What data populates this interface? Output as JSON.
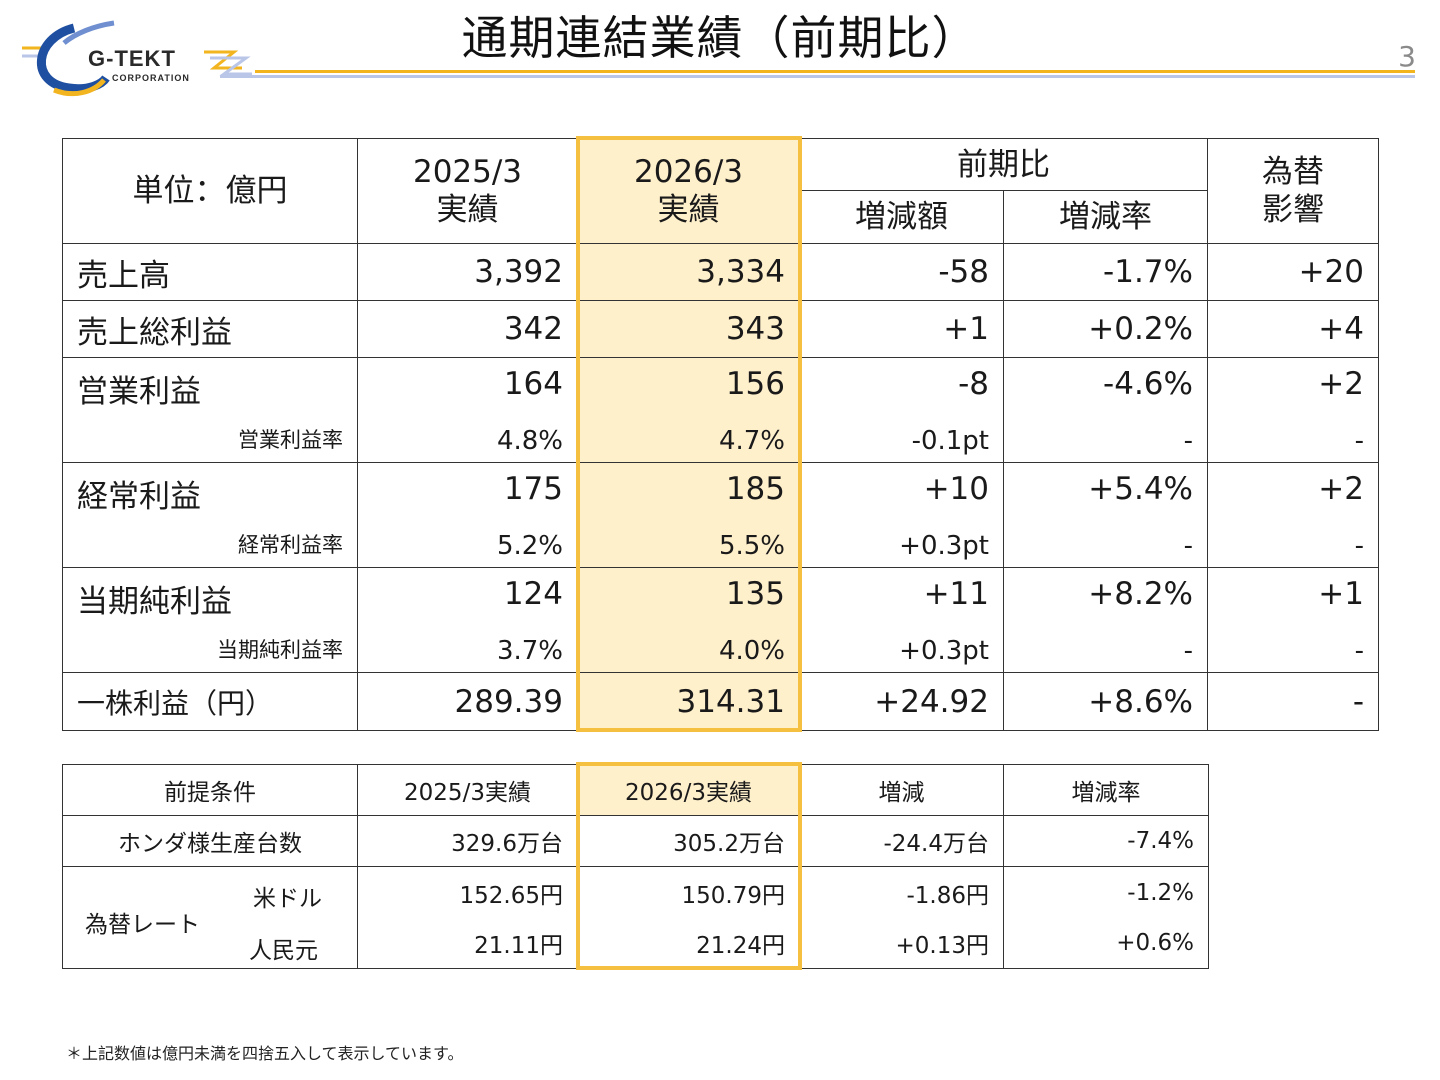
{
  "header": {
    "logo_text": "G-TEKT",
    "logo_subtext": "CORPORATION",
    "title": "通期連結業績（前期比）",
    "page_number": "3"
  },
  "main_table": {
    "unit_label": "単位：億円",
    "col_prev": "2025/3\n実績",
    "col_curr": "2026/3\n実績",
    "col_compare": "前期比",
    "col_change": "増減額",
    "col_rate": "増減率",
    "col_fx": "為替\n影響",
    "rows": [
      {
        "label": "売上高",
        "prev": "3,392",
        "curr": "3,334",
        "change": "-58",
        "rate": "-1.7%",
        "fx": "+20"
      },
      {
        "label": "売上総利益",
        "prev": "342",
        "curr": "343",
        "change": "+1",
        "rate": "+0.2%",
        "fx": "+4"
      },
      {
        "label": "営業利益",
        "prev": "164",
        "curr": "156",
        "change": "-8",
        "rate": "-4.6%",
        "fx": "+2",
        "sub_label": "営業利益率",
        "sub_prev": "4.8%",
        "sub_curr": "4.7%",
        "sub_change": "-0.1pt",
        "sub_rate": "-",
        "sub_fx": "-"
      },
      {
        "label": "経常利益",
        "prev": "175",
        "curr": "185",
        "change": "+10",
        "rate": "+5.4%",
        "fx": "+2",
        "sub_label": "経常利益率",
        "sub_prev": "5.2%",
        "sub_curr": "5.5%",
        "sub_change": "+0.3pt",
        "sub_rate": "-",
        "sub_fx": "-"
      },
      {
        "label": "当期純利益",
        "prev": "124",
        "curr": "135",
        "change": "+11",
        "rate": "+8.2%",
        "fx": "+1",
        "sub_label": "当期純利益率",
        "sub_prev": "3.7%",
        "sub_curr": "4.0%",
        "sub_change": "+0.3pt",
        "sub_rate": "-",
        "sub_fx": "-"
      },
      {
        "label": "一株利益（円）",
        "prev": "289.39",
        "curr": "314.31",
        "change": "+24.92",
        "rate": "+8.6%",
        "fx": "-"
      }
    ]
  },
  "conditions_table": {
    "col_label": "前提条件",
    "col_prev": "2025/3実績",
    "col_curr": "2026/3実績",
    "col_change": "増減",
    "col_rate": "増減率",
    "honda_label": "ホンダ様生産台数",
    "honda": {
      "prev": "329.6万台",
      "curr": "305.2万台",
      "change": "-24.4万台",
      "rate": "-7.4%"
    },
    "fx_label": "為替レート",
    "usd_label": "米ドル",
    "usd": {
      "prev": "152.65円",
      "curr": "150.79円",
      "change": "-1.86円",
      "rate": "-1.2%"
    },
    "cny_label": "人民元",
    "cny": {
      "prev": "21.11円",
      "curr": "21.24円",
      "change": "+0.13円",
      "rate": "+0.6%"
    }
  },
  "footnote": "＊上記数値は億円未満を四捨五入して表示しています。",
  "colors": {
    "highlight_fill": "#fff0cc",
    "highlight_border": "#f5bf40",
    "logo_blue": "#1f4fa0",
    "logo_yellow": "#f2b51f"
  }
}
